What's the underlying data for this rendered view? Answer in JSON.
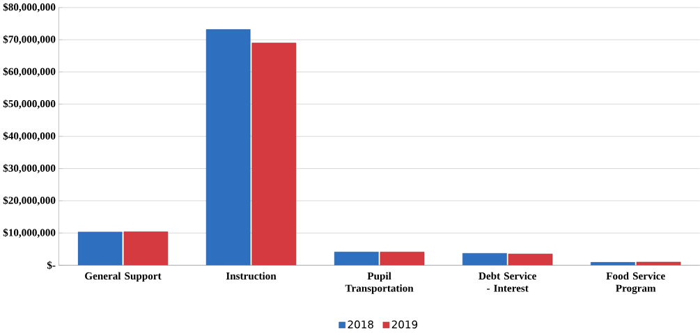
{
  "chart_data": {
    "type": "bar",
    "categories": [
      "General Support",
      "Instruction",
      "Pupil Transportation",
      "Debt Service - Interest",
      "Food Service Program"
    ],
    "series": [
      {
        "name": "2018",
        "color": "#2e6fc0",
        "values": [
          10300000,
          73200000,
          4100000,
          3700000,
          900000
        ]
      },
      {
        "name": "2019",
        "color": "#d43a40",
        "values": [
          10400000,
          69000000,
          4100000,
          3500000,
          1000000
        ]
      }
    ],
    "ylim": [
      0,
      80000000
    ],
    "yticks": [
      {
        "value": 0,
        "label": "$-"
      },
      {
        "value": 10000000,
        "label": "$10,000,000"
      },
      {
        "value": 20000000,
        "label": "$20,000,000"
      },
      {
        "value": 30000000,
        "label": "$30,000,000"
      },
      {
        "value": 40000000,
        "label": "$40,000,000"
      },
      {
        "value": 50000000,
        "label": "$50,000,000"
      },
      {
        "value": 60000000,
        "label": "$60,000,000"
      },
      {
        "value": 70000000,
        "label": "$70,000,000"
      },
      {
        "value": 80000000,
        "label": "$80,000,000"
      }
    ],
    "grid": "y",
    "legend": "bottom"
  }
}
